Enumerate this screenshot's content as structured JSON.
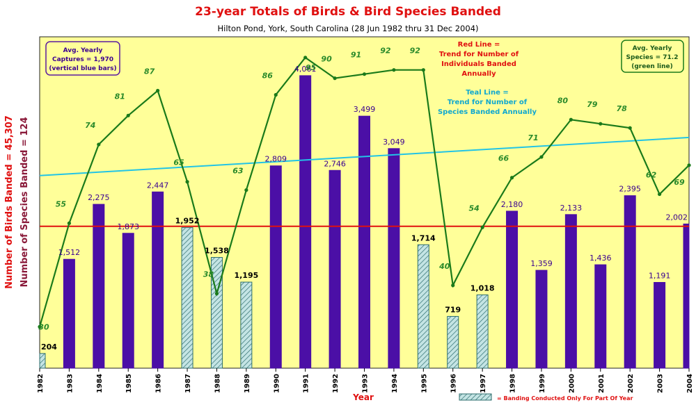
{
  "chart_data": {
    "type": "bar",
    "title": "23-year Totals of Birds & Bird Species Banded",
    "subtitle": "Hilton Pond, York, South Carolina (28 Jun 1982 thru 31 Dec 2004)",
    "xlabel": "Year",
    "ylabel_birds": "Number of Birds Banded = ",
    "ylabel_birds_total": "45,307",
    "ylabel_species": "Number of Species Banded = 124",
    "categories": [
      "1982",
      "1983",
      "1984",
      "1985",
      "1986",
      "1987",
      "1988",
      "1989",
      "1990",
      "1991",
      "1992",
      "1993",
      "1994",
      "1995",
      "1996",
      "1997",
      "1998",
      "1999",
      "2000",
      "2001",
      "2002",
      "2003",
      "2004"
    ],
    "series": [
      {
        "name": "Birds Banded",
        "values": [
          204,
          1512,
          2275,
          1873,
          2447,
          1952,
          1538,
          1195,
          2809,
          4061,
          2746,
          3499,
          3049,
          1714,
          719,
          1018,
          2180,
          1359,
          2133,
          1436,
          2395,
          1191,
          2002
        ],
        "labels": [
          "204",
          "1,512",
          "2,275",
          "1,873",
          "2,447",
          "1,952",
          "1,538",
          "1,195",
          "2,809",
          "4,061",
          "2,746",
          "3,499",
          "3,049",
          "1,714",
          "719",
          "1,018",
          "2,180",
          "1,359",
          "2,133",
          "1,436",
          "2,395",
          "1,191",
          "2,002"
        ],
        "partial_year": [
          true,
          false,
          false,
          false,
          false,
          true,
          true,
          true,
          false,
          false,
          false,
          false,
          false,
          true,
          true,
          true,
          false,
          false,
          false,
          false,
          false,
          false,
          false
        ]
      },
      {
        "name": "Species Banded",
        "values": [
          30,
          55,
          74,
          81,
          87,
          65,
          38,
          63,
          86,
          95,
          90,
          91,
          92,
          92,
          40,
          54,
          66,
          71,
          80,
          79,
          78,
          62,
          69
        ]
      }
    ],
    "ylim_birds": [
      0,
      4600
    ],
    "ylim_species": [
      20,
      100
    ],
    "trend_birds": [
      1970,
      1970
    ],
    "trend_species": [
      66.5,
      75.7
    ],
    "grid": false,
    "annotations": {
      "avg_captures": [
        "Avg. Yearly",
        "Captures = 1,970",
        "(vertical blue bars)"
      ],
      "avg_species": [
        "Avg. Yearly",
        "Species = 71.2",
        "(green line)"
      ],
      "red_line": [
        "Red Line =",
        "Trend for Number of",
        "Individuals Banded",
        "Annually"
      ],
      "teal_line": [
        "Teal Line =",
        "Trend for Number of",
        "Species Banded Annually"
      ],
      "legend_partial": "= Banding Conducted Only For Part Of Year"
    },
    "colors": {
      "plot_bg": "#ffff99",
      "bar_full": "#4b0fa6",
      "bar_partial": "#a9d7d7",
      "species_line": "#1a7a1a",
      "red_trend": "#e01010",
      "teal_trend": "#22c4e6",
      "title": "#e01010",
      "bar_label": "#3a0090",
      "species_label": "#2a8a2a"
    }
  }
}
